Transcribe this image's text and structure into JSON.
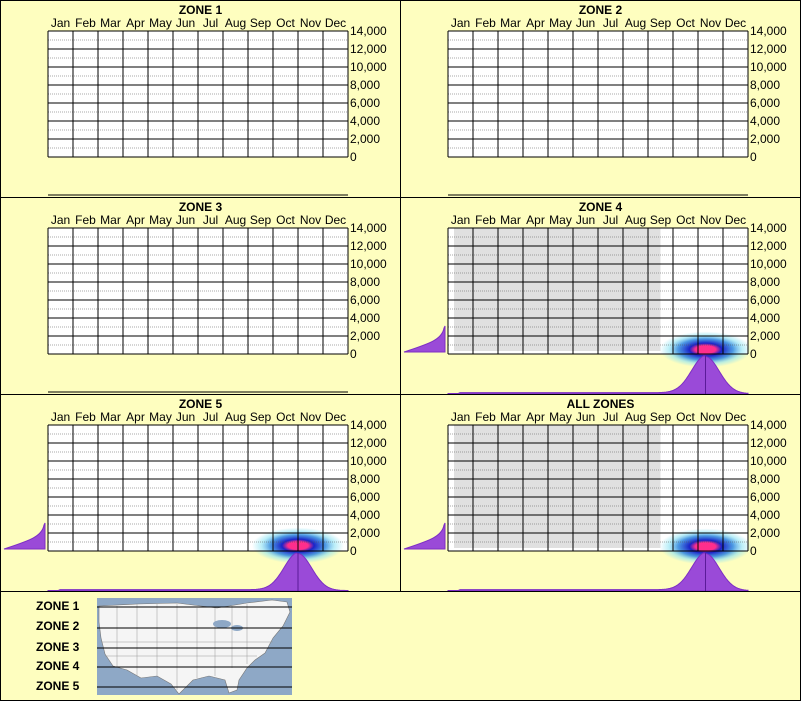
{
  "months": [
    "Jan",
    "Feb",
    "Mar",
    "Apr",
    "May",
    "Jun",
    "Jul",
    "Aug",
    "Sep",
    "Oct",
    "Nov",
    "Dec"
  ],
  "y_ticks": [
    "14,000",
    "12,000",
    "10,000",
    "8,000",
    "6,000",
    "4,000",
    "2,000",
    "0"
  ],
  "colors": {
    "background": "#fefebf",
    "season_shade": "#e0e0e0",
    "density_fill": "#9a4ad8",
    "density_stroke": "#7d2fc4",
    "heat_core": "#ff2e8c",
    "heat_mid": "#1a23c8",
    "heat_outer": "#8fe4f4",
    "map_water": "#8ea8c6",
    "map_land": "#f5f5f5"
  },
  "chart_data": [
    {
      "type": "heatmap",
      "title": "ZONE 1",
      "x_categories": [
        "Jan",
        "Feb",
        "Mar",
        "Apr",
        "May",
        "Jun",
        "Jul",
        "Aug",
        "Sep",
        "Oct",
        "Nov",
        "Dec"
      ],
      "ylim": [
        0,
        14000
      ],
      "has_data": false
    },
    {
      "type": "heatmap",
      "title": "ZONE 2",
      "x_categories": [
        "Jan",
        "Feb",
        "Mar",
        "Apr",
        "May",
        "Jun",
        "Jul",
        "Aug",
        "Sep",
        "Oct",
        "Nov",
        "Dec"
      ],
      "ylim": [
        0,
        14000
      ],
      "has_data": false
    },
    {
      "type": "heatmap",
      "title": "ZONE 3",
      "x_categories": [
        "Jan",
        "Feb",
        "Mar",
        "Apr",
        "May",
        "Jun",
        "Jul",
        "Aug",
        "Sep",
        "Oct",
        "Nov",
        "Dec"
      ],
      "ylim": [
        0,
        14000
      ],
      "has_data": false
    },
    {
      "type": "heatmap",
      "title": "ZONE 4",
      "x_categories": [
        "Jan",
        "Feb",
        "Mar",
        "Apr",
        "May",
        "Jun",
        "Jul",
        "Aug",
        "Sep",
        "Oct",
        "Nov",
        "Dec"
      ],
      "ylim": [
        0,
        14000
      ],
      "has_data": true,
      "gray_season_months": [
        1,
        9.5
      ],
      "hotspot": {
        "month": 10.8,
        "elevation": 500
      },
      "elevation_density_peak": 300,
      "month_density": {
        "peak_month": 10.8,
        "spread_months": 0.55
      }
    },
    {
      "type": "heatmap",
      "title": "ZONE 5",
      "x_categories": [
        "Jan",
        "Feb",
        "Mar",
        "Apr",
        "May",
        "Jun",
        "Jul",
        "Aug",
        "Sep",
        "Oct",
        "Nov",
        "Dec"
      ],
      "ylim": [
        0,
        14000
      ],
      "has_data": true,
      "gray_season_months": null,
      "hotspot": {
        "month": 10.5,
        "elevation": 600
      },
      "elevation_density_peak": 300,
      "month_density": {
        "peak_month": 10.5,
        "spread_months": 0.55
      }
    },
    {
      "type": "heatmap",
      "title": "ALL ZONES",
      "x_categories": [
        "Jan",
        "Feb",
        "Mar",
        "Apr",
        "May",
        "Jun",
        "Jul",
        "Aug",
        "Sep",
        "Oct",
        "Nov",
        "Dec"
      ],
      "ylim": [
        0,
        14000
      ],
      "has_data": true,
      "gray_season_months": [
        1,
        9.5
      ],
      "hotspot": {
        "month": 10.8,
        "elevation": 500
      },
      "elevation_density_peak": 300,
      "month_density": {
        "peak_month": 10.8,
        "spread_months": 0.55
      }
    }
  ],
  "legend": {
    "zones": [
      "ZONE 1",
      "ZONE 2",
      "ZONE 3",
      "ZONE 4",
      "ZONE 5"
    ]
  }
}
